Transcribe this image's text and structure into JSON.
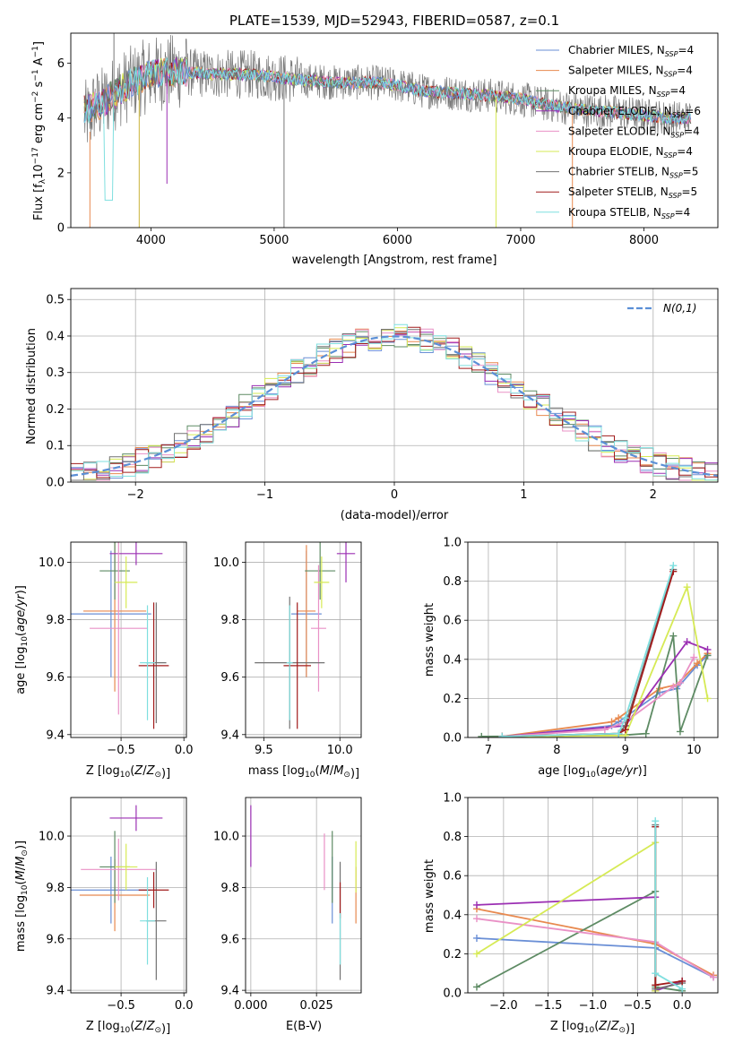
{
  "colors": [
    "#6a8fd6",
    "#e8894f",
    "#5e8b64",
    "#9b2fb3",
    "#e991c6",
    "#d6ea55",
    "#727272",
    "#a11c1c",
    "#7fdfdf"
  ],
  "sub": "SSP",
  "chart_data": [
    {
      "type": "line",
      "title": "PLATE=1539, MJD=52943, FIBERID=0587, z=0.1",
      "xlabel": "wavelength [Angstrom, rest frame]",
      "ylabel": "Flux [f",
      "ylabel_lambda": "λ",
      "ylabel_rest": "10",
      "ylabel_exp": "−17",
      "ylabel_units": " erg cm",
      "ylabel_exp2": "−2",
      "ylabel_units2": " s",
      "ylabel_exp3": "−1",
      "ylabel_units3": " A",
      "ylabel_exp4": "−1",
      "ylabel_end": "]",
      "xlim": [
        3350,
        8600
      ],
      "ylim": [
        0,
        7.1
      ],
      "xticks": [
        "4000",
        "5000",
        "6000",
        "7000",
        "8000"
      ],
      "yticks": [
        "0",
        "2",
        "4",
        "6"
      ],
      "legend": [
        "Chabrier MILES, N",
        "Salpeter MILES, N",
        "Kroupa MILES, N",
        "Chabrier ELODIE, N",
        "Salpeter ELODIE, N",
        "Kroupa ELODIE, N",
        "Chabrier STELIB, N",
        "Salpeter STELIB, N",
        "Kroupa STELIB, N"
      ],
      "legend_n": [
        "=4",
        "=4",
        "=4",
        "=6",
        "=4",
        "=4",
        "=5",
        "=5",
        "=4"
      ],
      "legend_placement": "top-right",
      "approx_continuum": {
        "x": [
          3460,
          3600,
          3700,
          3850,
          4000,
          4200,
          4500,
          4800,
          5000,
          5200,
          5500,
          5800,
          6000,
          6200,
          6500,
          6800,
          7000,
          7200,
          7500,
          7800,
          8000,
          8200,
          8380
        ],
        "y": [
          4.3,
          4.5,
          4.9,
          5.3,
          5.6,
          5.7,
          5.6,
          5.6,
          5.5,
          5.4,
          5.3,
          5.3,
          5.2,
          5.0,
          4.9,
          4.8,
          4.7,
          4.5,
          4.3,
          4.2,
          4.1,
          4.0,
          4.0
        ]
      }
    },
    {
      "type": "line",
      "xlabel": "(data-model)/error",
      "ylabel": "Normed distribution",
      "xlim": [
        -2.5,
        2.5
      ],
      "ylim": [
        0,
        0.53
      ],
      "xticks": [
        "−2",
        "−1",
        "0",
        "1",
        "2"
      ],
      "yticks": [
        "0.0",
        "0.1",
        "0.2",
        "0.3",
        "0.4",
        "0.5"
      ],
      "grid": true,
      "legend": [
        "N(0,1)"
      ],
      "legend_placement": "top-right",
      "gaussian": {
        "mean": 0,
        "sigma": 1,
        "style": "dashed"
      }
    },
    {
      "type": "scatter",
      "xlabel": "Z [log10(Z/Z⊙)]",
      "ylabel": "age  [log10(age/yr)]",
      "xlim": [
        -0.9,
        0.02
      ],
      "ylim": [
        9.39,
        10.07
      ],
      "xticks": [
        "−0.5",
        "0.0"
      ],
      "yticks": [
        "9.4",
        "9.6",
        "9.8",
        "10.0"
      ],
      "grid": true,
      "points": [
        {
          "x": -0.58,
          "y": 9.82,
          "xerr": 0.32,
          "yerr": 0.22
        },
        {
          "x": -0.55,
          "y": 9.83,
          "xerr": 0.25,
          "yerr": 0.28
        },
        {
          "x": -0.55,
          "y": 9.97,
          "xerr": 0.12,
          "yerr": 0.1
        },
        {
          "x": -0.38,
          "y": 10.03,
          "xerr": 0.21,
          "yerr": 0.04
        },
        {
          "x": -0.52,
          "y": 9.77,
          "xerr": 0.23,
          "yerr": 0.3
        },
        {
          "x": -0.46,
          "y": 9.93,
          "xerr": 0.09,
          "yerr": 0.09
        },
        {
          "x": -0.22,
          "y": 9.65,
          "xerr": 0.08,
          "yerr": 0.21
        },
        {
          "x": -0.24,
          "y": 9.64,
          "xerr": 0.12,
          "yerr": 0.22
        },
        {
          "x": -0.29,
          "y": 9.65,
          "xerr": 0.06,
          "yerr": 0.2
        }
      ]
    },
    {
      "type": "scatter",
      "xlabel": "mass [log10(M/M⊙)]",
      "ylabel": "",
      "xlim": [
        9.38,
        10.14
      ],
      "ylim": [
        9.39,
        10.07
      ],
      "xticks": [
        "9.5",
        "10.0"
      ],
      "yticks": [
        "9.4",
        "9.6",
        "9.8",
        "10.0"
      ],
      "grid": true,
      "points": [
        {
          "x": 9.78,
          "y": 9.82,
          "xerr": 0.1,
          "yerr": 0.22
        },
        {
          "x": 9.78,
          "y": 9.83,
          "xerr": 0.06,
          "yerr": 0.23
        },
        {
          "x": 9.87,
          "y": 9.97,
          "xerr": 0.1,
          "yerr": 0.1
        },
        {
          "x": 10.04,
          "y": 10.03,
          "xerr": 0.06,
          "yerr": 0.1
        },
        {
          "x": 9.86,
          "y": 9.77,
          "xerr": 0.05,
          "yerr": 0.22
        },
        {
          "x": 9.88,
          "y": 9.93,
          "xerr": 0.05,
          "yerr": 0.09
        },
        {
          "x": 9.67,
          "y": 9.65,
          "xerr": 0.23,
          "yerr": 0.23
        },
        {
          "x": 9.72,
          "y": 9.64,
          "xerr": 0.09,
          "yerr": 0.22
        },
        {
          "x": 9.67,
          "y": 9.65,
          "xerr": 0.02,
          "yerr": 0.2
        }
      ]
    },
    {
      "type": "line",
      "xlabel": "age  [log10(age/yr)]",
      "ylabel": "mass weight",
      "xlim": [
        6.7,
        10.35
      ],
      "ylim": [
        0,
        1.0
      ],
      "xticks": [
        "7",
        "8",
        "9",
        "10"
      ],
      "yticks": [
        "0.0",
        "0.2",
        "0.4",
        "0.6",
        "0.8",
        "1.0"
      ],
      "grid": true,
      "series": [
        {
          "x": [
            7.2,
            8.8,
            8.9,
            9.5,
            9.75,
            10.05,
            10.2
          ],
          "y": [
            0.005,
            0.06,
            0.08,
            0.23,
            0.25,
            0.37,
            0.42
          ]
        },
        {
          "x": [
            7.2,
            8.8,
            8.9,
            9.5,
            9.75,
            10.05,
            10.2
          ],
          "y": [
            0.005,
            0.08,
            0.1,
            0.25,
            0.27,
            0.38,
            0.43
          ]
        },
        {
          "x": [
            6.9,
            8.9,
            9.3,
            9.7,
            9.8,
            10.2
          ],
          "y": [
            0.005,
            0.01,
            0.02,
            0.52,
            0.03,
            0.42
          ]
        },
        {
          "x": [
            7.2,
            9.0,
            9.9,
            10.2
          ],
          "y": [
            0.005,
            0.06,
            0.49,
            0.45
          ]
        },
        {
          "x": [
            7.2,
            8.7,
            9.0,
            9.7,
            9.8,
            10.0
          ],
          "y": [
            0.005,
            0.04,
            0.08,
            0.26,
            0.28,
            0.41
          ]
        },
        {
          "x": [
            7.2,
            9.0,
            9.9,
            10.2
          ],
          "y": [
            0.005,
            0.01,
            0.77,
            0.2
          ]
        },
        {
          "x": [
            7.2,
            8.9,
            9.0,
            9.7
          ],
          "y": [
            0.005,
            0.02,
            0.06,
            0.86
          ]
        },
        {
          "x": [
            7.2,
            8.9,
            9.0,
            9.7
          ],
          "y": [
            0.005,
            0.02,
            0.04,
            0.85
          ]
        },
        {
          "x": [
            7.2,
            8.9,
            9.0,
            9.7
          ],
          "y": [
            0.005,
            0.02,
            0.1,
            0.88
          ]
        }
      ]
    },
    {
      "type": "scatter",
      "xlabel": "Z [log10(Z/Z⊙)]",
      "ylabel": "mass [log10(M/M⊙)]",
      "xlim": [
        -0.9,
        0.02
      ],
      "ylim": [
        9.39,
        10.15
      ],
      "xticks": [
        "−0.5",
        "0.0"
      ],
      "yticks": [
        "9.4",
        "9.6",
        "9.8",
        "10.0"
      ],
      "grid": true,
      "points": [
        {
          "x": -0.58,
          "y": 9.79,
          "xerr": 0.32,
          "yerr": 0.13
        },
        {
          "x": -0.55,
          "y": 9.77,
          "xerr": 0.28,
          "yerr": 0.14
        },
        {
          "x": -0.55,
          "y": 9.88,
          "xerr": 0.12,
          "yerr": 0.14
        },
        {
          "x": -0.38,
          "y": 10.07,
          "xerr": 0.21,
          "yerr": 0.05
        },
        {
          "x": -0.52,
          "y": 9.87,
          "xerr": 0.3,
          "yerr": 0.12
        },
        {
          "x": -0.46,
          "y": 9.88,
          "xerr": 0.09,
          "yerr": 0.09
        },
        {
          "x": -0.22,
          "y": 9.67,
          "xerr": 0.08,
          "yerr": 0.23
        },
        {
          "x": -0.24,
          "y": 9.79,
          "xerr": 0.12,
          "yerr": 0.07
        },
        {
          "x": -0.29,
          "y": 9.67,
          "xerr": 0.06,
          "yerr": 0.17
        }
      ]
    },
    {
      "type": "scatter",
      "xlabel": "E(B-V)",
      "ylabel": "",
      "xlim": [
        -0.002,
        0.042
      ],
      "ylim": [
        9.39,
        10.15
      ],
      "xticks": [
        "0.000",
        "0.025"
      ],
      "yticks": [
        "9.4",
        "9.6",
        "9.8",
        "10.0"
      ],
      "grid": true,
      "points": [
        {
          "x": 0.031,
          "y": 9.79,
          "yerr": 0.13
        },
        {
          "x": 0.04,
          "y": 9.77,
          "yerr": 0.11
        },
        {
          "x": 0.031,
          "y": 9.88,
          "yerr": 0.14
        },
        {
          "x": 0.0,
          "y": 10.0,
          "yerr": 0.12
        },
        {
          "x": 0.028,
          "y": 9.9,
          "yerr": 0.11
        },
        {
          "x": 0.04,
          "y": 9.88,
          "yerr": 0.1
        },
        {
          "x": 0.034,
          "y": 9.67,
          "yerr": 0.23
        },
        {
          "x": 0.034,
          "y": 9.75,
          "yerr": 0.07
        },
        {
          "x": 0.034,
          "y": 9.6,
          "yerr": 0.1
        }
      ]
    },
    {
      "type": "line",
      "xlabel": "Z [log10(Z/Z⊙)]",
      "ylabel": "mass weight",
      "xlim": [
        -2.4,
        0.4
      ],
      "ylim": [
        0,
        1.0
      ],
      "xticks": [
        "−2.0",
        "−1.5",
        "−1.0",
        "−0.5",
        "0.0"
      ],
      "yticks": [
        "0.0",
        "0.2",
        "0.4",
        "0.6",
        "0.8",
        "1.0"
      ],
      "grid": true,
      "series": [
        {
          "x": [
            -2.3,
            -0.3,
            0.35
          ],
          "y": [
            0.28,
            0.23,
            0.08
          ]
        },
        {
          "x": [
            -2.3,
            -0.3,
            0.35
          ],
          "y": [
            0.43,
            0.25,
            0.09
          ]
        },
        {
          "x": [
            -2.3,
            -0.3,
            -0.3,
            0.0
          ],
          "y": [
            0.03,
            0.52,
            0.03,
            0.01
          ]
        },
        {
          "x": [
            -2.3,
            -0.3,
            -0.3,
            0.0
          ],
          "y": [
            0.45,
            0.49,
            0.01,
            0.06
          ]
        },
        {
          "x": [
            -2.3,
            -0.3,
            0.35
          ],
          "y": [
            0.38,
            0.26,
            0.08
          ]
        },
        {
          "x": [
            -2.3,
            -0.3,
            -0.3
          ],
          "y": [
            0.2,
            0.77,
            0.01
          ]
        },
        {
          "x": [
            -0.3,
            -0.3,
            0.0
          ],
          "y": [
            0.86,
            0.02,
            0.05
          ]
        },
        {
          "x": [
            -0.3,
            -0.3,
            0.0
          ],
          "y": [
            0.85,
            0.04,
            0.06
          ]
        },
        {
          "x": [
            -0.3,
            -0.3,
            0.0
          ],
          "y": [
            0.88,
            0.1,
            0.02
          ]
        }
      ]
    }
  ]
}
